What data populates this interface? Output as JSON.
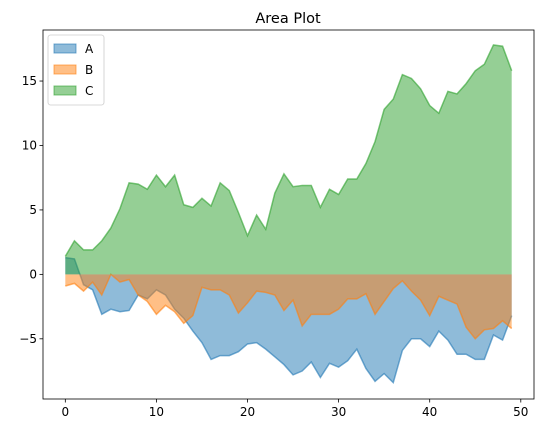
{
  "chart_data": {
    "type": "area",
    "title": "Area Plot",
    "xlabel": "",
    "ylabel": "",
    "xlim": [
      -2.45,
      51.45
    ],
    "ylim": [
      -9.67,
      18.96
    ],
    "x_ticks": [
      0,
      10,
      20,
      30,
      40,
      50
    ],
    "x_tick_labels": [
      "0",
      "10",
      "20",
      "30",
      "40",
      "50"
    ],
    "y_ticks": [
      -5,
      0,
      5,
      10,
      15
    ],
    "y_tick_labels": [
      "−5",
      "0",
      "5",
      "10",
      "15"
    ],
    "grid": false,
    "legend_position": "top-left",
    "x": [
      0,
      1,
      2,
      3,
      4,
      5,
      6,
      7,
      8,
      9,
      10,
      11,
      12,
      13,
      14,
      15,
      16,
      17,
      18,
      19,
      20,
      21,
      22,
      23,
      24,
      25,
      26,
      27,
      28,
      29,
      30,
      31,
      32,
      33,
      34,
      35,
      36,
      37,
      38,
      39,
      40,
      41,
      42,
      43,
      44,
      45,
      46,
      47,
      48,
      49
    ],
    "series": [
      {
        "name": "A",
        "color": "#1f77b4",
        "values": [
          1.3,
          1.2,
          -0.8,
          -1.2,
          -3.1,
          -2.7,
          -2.9,
          -2.8,
          -1.6,
          -1.9,
          -1.2,
          -1.6,
          -2.7,
          -3.4,
          -4.4,
          -5.3,
          -6.6,
          -6.3,
          -6.3,
          -6.0,
          -5.4,
          -5.3,
          -5.8,
          -6.4,
          -7.0,
          -7.8,
          -7.5,
          -6.8,
          -8.0,
          -6.9,
          -7.2,
          -6.7,
          -5.8,
          -7.3,
          -8.3,
          -7.7,
          -8.4,
          -5.9,
          -5.0,
          -5.0,
          -5.6,
          -4.4,
          -5.1,
          -6.2,
          -6.2,
          -6.6,
          -6.6,
          -4.7,
          -5.1,
          -3.2
        ]
      },
      {
        "name": "B",
        "color": "#ff7f0e",
        "values": [
          -0.9,
          -0.7,
          -1.3,
          -0.6,
          -1.6,
          0.0,
          -0.6,
          -0.4,
          -1.6,
          -2.1,
          -3.1,
          -2.4,
          -2.9,
          -3.8,
          -3.2,
          -1.0,
          -1.2,
          -1.2,
          -1.6,
          -3.0,
          -2.2,
          -1.3,
          -1.4,
          -1.6,
          -2.8,
          -2.0,
          -4.0,
          -3.1,
          -3.1,
          -3.1,
          -2.7,
          -1.9,
          -1.9,
          -1.5,
          -3.1,
          -2.1,
          -1.1,
          -0.5,
          -1.3,
          -2.0,
          -3.2,
          -1.7,
          -2.0,
          -2.3,
          -4.1,
          -5.0,
          -4.3,
          -4.2,
          -3.6,
          -4.2
        ]
      },
      {
        "name": "C",
        "color": "#2ca02c",
        "values": [
          1.4,
          2.6,
          1.9,
          1.9,
          2.6,
          3.6,
          5.1,
          7.1,
          7.0,
          6.6,
          7.7,
          6.8,
          7.7,
          5.4,
          5.2,
          5.9,
          5.3,
          7.1,
          6.5,
          4.8,
          3.0,
          4.6,
          3.5,
          6.3,
          7.8,
          6.8,
          6.9,
          6.9,
          5.2,
          6.6,
          6.2,
          7.4,
          7.4,
          8.6,
          10.3,
          12.8,
          13.6,
          15.5,
          15.2,
          14.4,
          13.1,
          12.5,
          14.2,
          14.0,
          14.8,
          15.8,
          16.3,
          17.8,
          17.7,
          15.8
        ]
      }
    ]
  }
}
